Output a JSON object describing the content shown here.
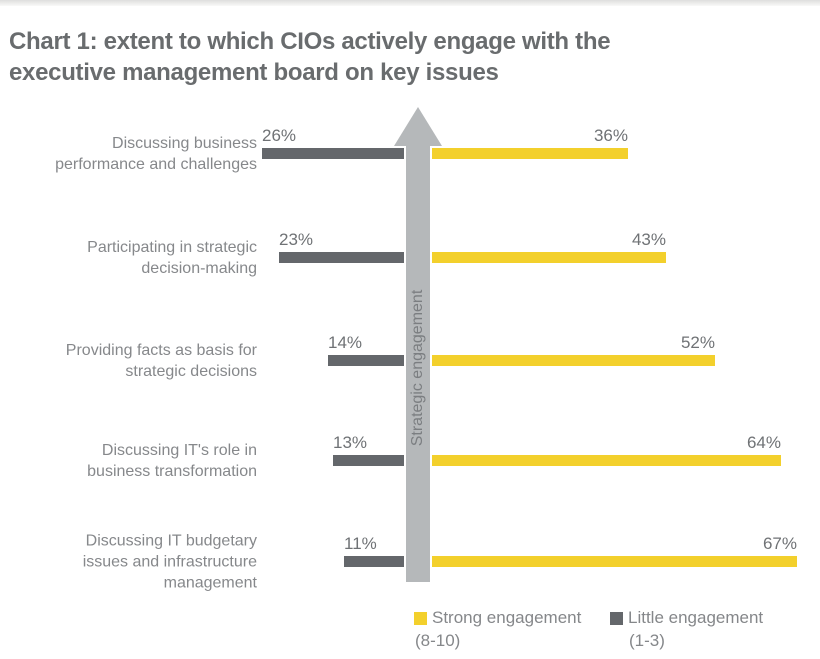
{
  "chart_data": {
    "type": "bar",
    "variant": "diverging-horizontal",
    "title": "Chart 1: extent to which CIOs actively engage with the executive management board on key issues",
    "title_lines": [
      "Chart 1: extent to which CIOs actively engage with the",
      "executive management board on key issues"
    ],
    "axis_label": "Strategic engagement",
    "categories": [
      "Discussing business\nperformance and challenges",
      "Participating in strategic\ndecision-making",
      "Providing facts as basis for\nstrategic decisions",
      "Discussing IT's role in\nbusiness transformation",
      "Discussing IT budgetary\nissues and infrastructure\nmanagement"
    ],
    "series": [
      {
        "name": "Strong engagement (8-10)",
        "side": "right",
        "color": "#f3d02c",
        "values": [
          36,
          43,
          52,
          64,
          67
        ]
      },
      {
        "name": "Little engagement (1-3)",
        "side": "left",
        "color": "#64676b",
        "values": [
          26,
          23,
          14,
          13,
          11
        ]
      }
    ],
    "value_suffix": "%",
    "legend": [
      {
        "label": "Strong engagement",
        "range": "(8-10)"
      },
      {
        "label": "Little engagement",
        "range": "(1-3)"
      }
    ],
    "colors": {
      "strong_bar": "#f3d02c",
      "little_bar": "#64676b",
      "arrow": "#b5b8ba",
      "title_text": "#696c6e",
      "label_text": "#86888b",
      "value_text": "#6f7275"
    },
    "grid": false,
    "legend_position": "bottom-right"
  }
}
